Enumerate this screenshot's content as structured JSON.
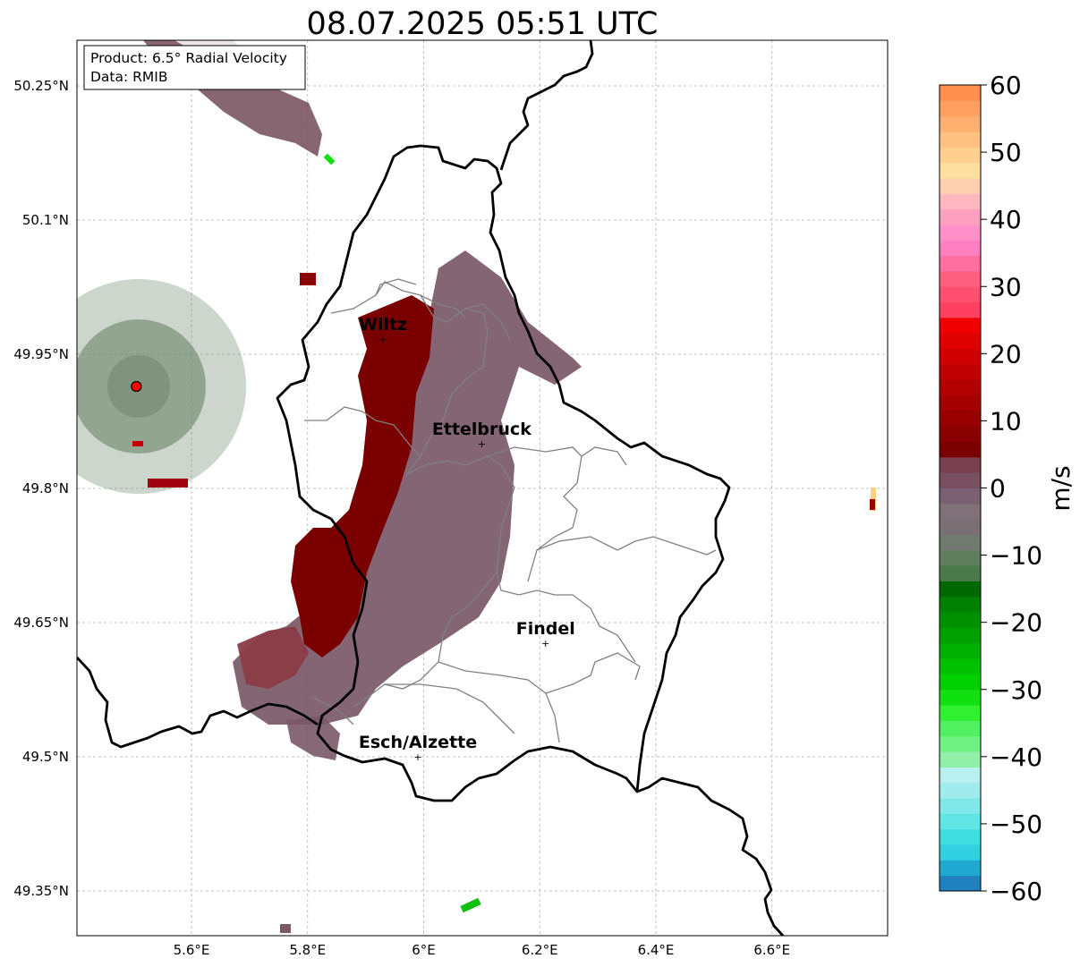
{
  "title": "08.07.2025 05:51 UTC",
  "info_box": {
    "line1": "Product: 6.5° Radial Velocity",
    "line2": "Data: RMIB"
  },
  "axes": {
    "lat_ticks": [
      {
        "value": 50.25,
        "label": "50.25°N"
      },
      {
        "value": 50.1,
        "label": "50.1°N"
      },
      {
        "value": 49.95,
        "label": "49.95°N"
      },
      {
        "value": 49.8,
        "label": "49.8°N"
      },
      {
        "value": 49.65,
        "label": "49.65°N"
      },
      {
        "value": 49.5,
        "label": "49.5°N"
      },
      {
        "value": 49.35,
        "label": "49.35°N"
      }
    ],
    "lon_ticks": [
      {
        "value": 5.6,
        "label": "5.6°E"
      },
      {
        "value": 5.8,
        "label": "5.8°E"
      },
      {
        "value": 6.0,
        "label": "6°E"
      },
      {
        "value": 6.2,
        "label": "6.2°E"
      },
      {
        "value": 6.4,
        "label": "6.4°E"
      },
      {
        "value": 6.6,
        "label": "6.6°E"
      }
    ],
    "lon_range": [
      5.4,
      6.8
    ],
    "lat_range": [
      49.3,
      50.3
    ],
    "grid": true
  },
  "cities": [
    {
      "name": "Wiltz",
      "lon": 5.93,
      "lat": 49.967
    },
    {
      "name": "Ettelbruck",
      "lon": 6.1,
      "lat": 49.85
    },
    {
      "name": "Findel",
      "lon": 6.21,
      "lat": 49.627
    },
    {
      "name": "Esch/Alzette",
      "lon": 5.99,
      "lat": 49.5
    }
  ],
  "radar_site": {
    "lon": 5.505,
    "lat": 49.914
  },
  "colorbar": {
    "label": "m/s",
    "range": [
      -60,
      60
    ],
    "ticks": [
      {
        "value": 60,
        "label": "60"
      },
      {
        "value": 50,
        "label": "50"
      },
      {
        "value": 40,
        "label": "40"
      },
      {
        "value": 30,
        "label": "30"
      },
      {
        "value": 20,
        "label": "20"
      },
      {
        "value": 10,
        "label": "10"
      },
      {
        "value": 0,
        "label": "0"
      },
      {
        "value": -10,
        "label": "−10"
      },
      {
        "value": -20,
        "label": "−20"
      },
      {
        "value": -30,
        "label": "−30"
      },
      {
        "value": -40,
        "label": "−40"
      },
      {
        "value": -50,
        "label": "−50"
      },
      {
        "value": -60,
        "label": "−60"
      }
    ],
    "colors": [
      "#2080c0",
      "#20a8d0",
      "#30d0e0",
      "#40dde0",
      "#60e4e4",
      "#80e8e8",
      "#a0ecec",
      "#b8f0f0",
      "#90f0a8",
      "#70f080",
      "#50f060",
      "#30f030",
      "#10e010",
      "#00d000",
      "#00c000",
      "#00b000",
      "#00a000",
      "#009000",
      "#008000",
      "#006800",
      "#4a7a4a",
      "#5e7e5e",
      "#707a6e",
      "#7a7074",
      "#807078",
      "#7a6070",
      "#7a5060",
      "#7a4050",
      "#7a0000",
      "#880000",
      "#960000",
      "#a40000",
      "#b20000",
      "#c00000",
      "#d00000",
      "#e00000",
      "#f00000",
      "#ff4060",
      "#ff5070",
      "#ff6080",
      "#ff70a0",
      "#ff80c0",
      "#ff90c8",
      "#ffa0c0",
      "#ffb8c0",
      "#ffd0b0",
      "#ffe0a0",
      "#ffd090",
      "#ffc080",
      "#ffb070",
      "#ffa060",
      "#ff9050"
    ]
  },
  "colors": {
    "border": "#000000",
    "admin": "#808080",
    "grid": "#b0b0b0",
    "approaching": "#7a0000",
    "receding": "#7a5868",
    "near_zero": "#607a60"
  }
}
